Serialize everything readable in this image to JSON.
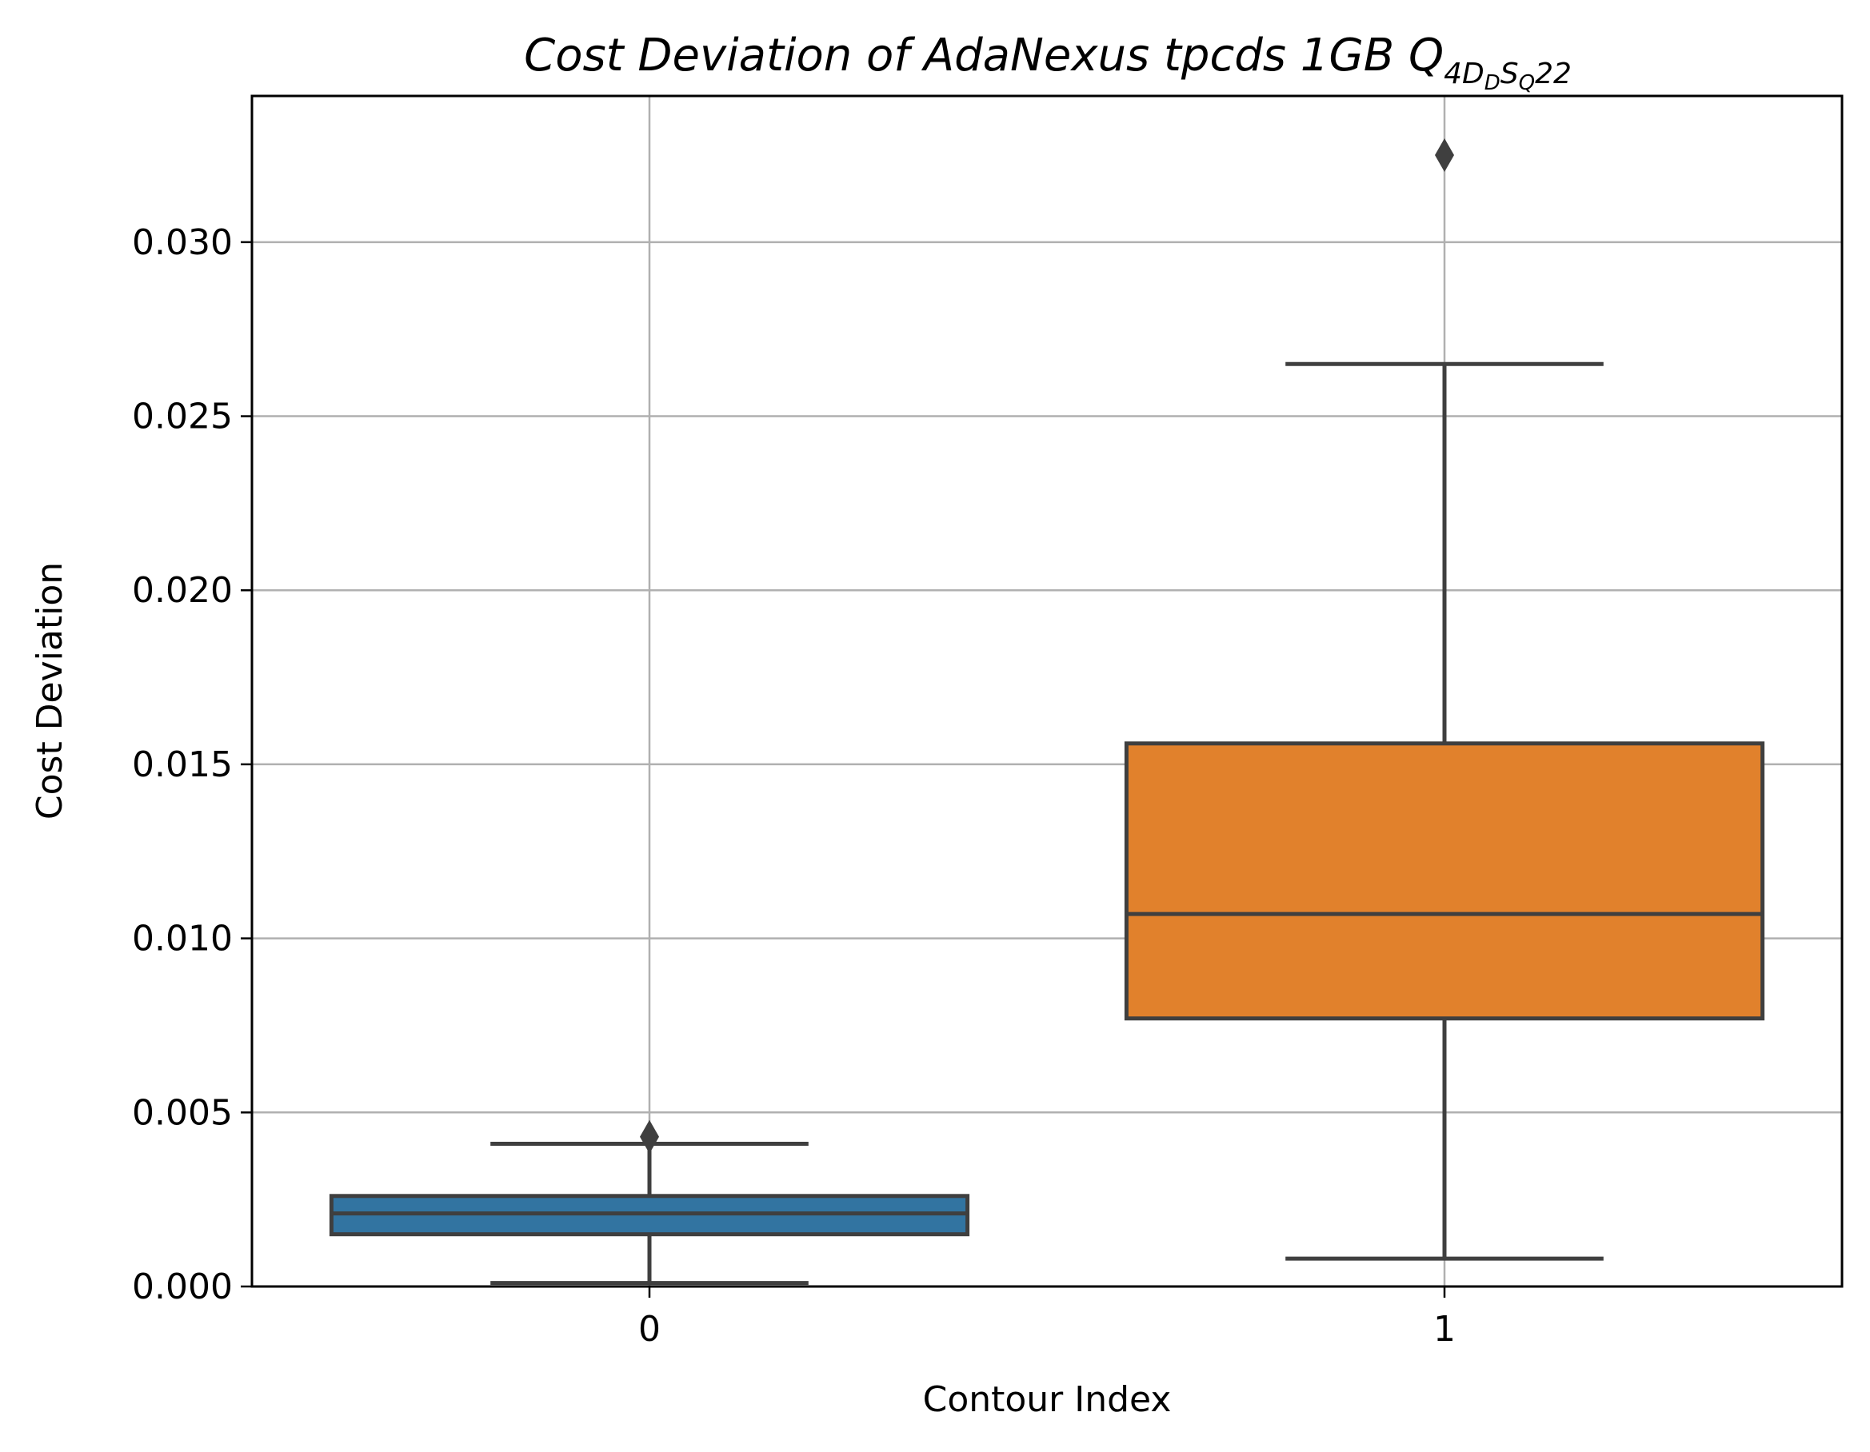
{
  "chart_data": {
    "type": "box",
    "title": {
      "main": "Cost Deviation of AdaNexus tpcds  1GB  Q",
      "sub_a": "4D",
      "sub_b": "D",
      "sub_c": "S",
      "sub_d": "Q",
      "tail": "22"
    },
    "xlabel": "Contour Index",
    "ylabel": "Cost Deviation",
    "categories": [
      "0",
      "1"
    ],
    "ylim": [
      0,
      0.0342
    ],
    "yticks": [
      0,
      0.005,
      0.01,
      0.015,
      0.02,
      0.025,
      0.03
    ],
    "ytick_labels": [
      "0.000",
      "0.005",
      "0.010",
      "0.015",
      "0.020",
      "0.025",
      "0.030"
    ],
    "grid": true,
    "boxes": [
      {
        "category": "0",
        "whisker_low": 0.0001,
        "q1": 0.0015,
        "median": 0.0021,
        "q3": 0.0026,
        "whisker_high": 0.0041,
        "outliers": [
          0.0043
        ],
        "color": "#3274a1"
      },
      {
        "category": "1",
        "whisker_low": 0.0008,
        "q1": 0.0077,
        "median": 0.0107,
        "q3": 0.0156,
        "whisker_high": 0.0265,
        "outliers": [
          0.0325
        ],
        "color": "#e1812c"
      }
    ],
    "line_color": "#3f3f3f",
    "grid_color": "#b0b0b0"
  }
}
